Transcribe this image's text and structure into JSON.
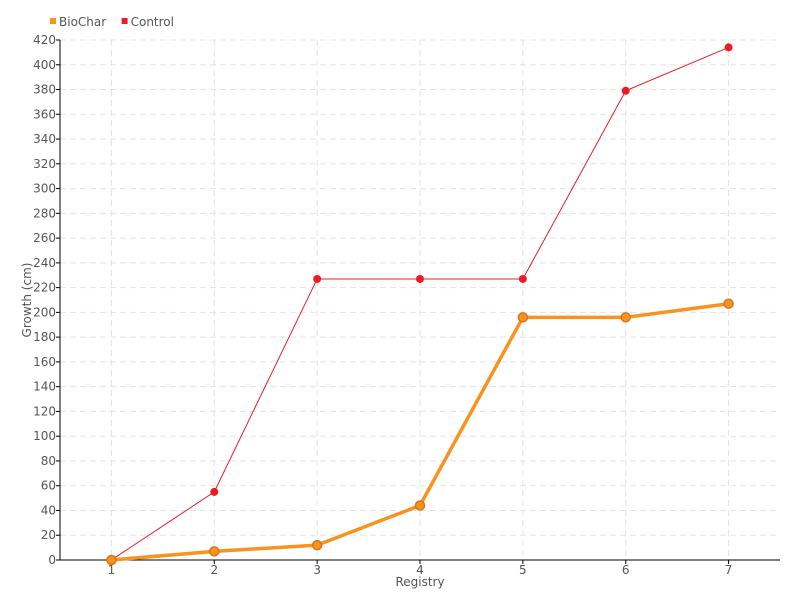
{
  "chart_data": {
    "type": "line",
    "title": "",
    "xlabel": "Registry",
    "ylabel": "Growth (cm)",
    "categories": [
      "1",
      "2",
      "3",
      "4",
      "5",
      "6",
      "7"
    ],
    "ylim": [
      0,
      420
    ],
    "yticks": [
      0,
      20,
      40,
      60,
      80,
      100,
      120,
      140,
      160,
      180,
      200,
      220,
      240,
      260,
      280,
      300,
      320,
      340,
      360,
      380,
      400,
      420
    ],
    "grid": true,
    "legend_position": "top-left",
    "series": [
      {
        "name": "BioChar",
        "color": "#f7931e",
        "values": [
          0,
          7,
          12,
          44,
          196,
          196,
          207
        ]
      },
      {
        "name": "Control",
        "color": "#ed1c24",
        "values": [
          0,
          55,
          227,
          227,
          227,
          379,
          414
        ]
      }
    ]
  }
}
